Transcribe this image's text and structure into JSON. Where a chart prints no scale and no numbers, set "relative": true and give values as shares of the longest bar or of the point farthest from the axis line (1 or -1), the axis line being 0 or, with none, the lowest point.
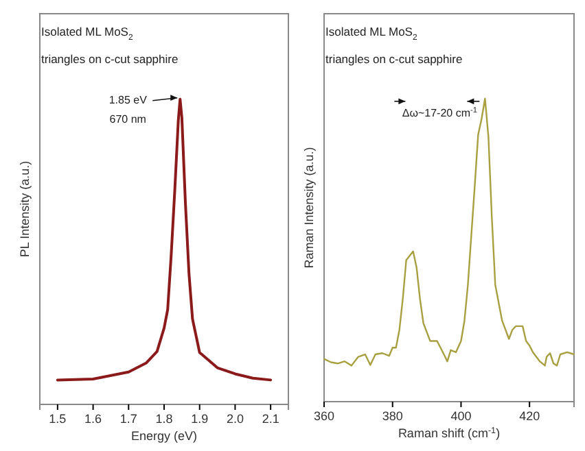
{
  "chart_data": [
    {
      "type": "line",
      "title": "Isolated ML MoS$_{2}$",
      "subtitle": "triangles on c-cut sapphire",
      "xlabel": "Energy (eV)",
      "ylabel": "PL Intensity (a.u.)",
      "relative": true,
      "tick_labels": "x",
      "xlim": [
        1.45,
        2.15
      ],
      "xticks": [
        {
          "value": 1.5,
          "label": "1.5"
        },
        {
          "value": 1.6,
          "label": "1.6"
        },
        {
          "value": 1.7,
          "label": "1.7"
        },
        {
          "value": 1.8,
          "label": "1.8"
        },
        {
          "value": 1.9,
          "label": "1.9"
        },
        {
          "value": 2.0,
          "label": "2.0"
        },
        {
          "value": 2.1,
          "label": "2.1"
        }
      ],
      "x": [
        1.5,
        1.6,
        1.7,
        1.75,
        1.78,
        1.8,
        1.81,
        1.82,
        1.83,
        1.84,
        1.845,
        1.85,
        1.86,
        1.87,
        1.88,
        1.9,
        1.95,
        2.0,
        2.05,
        2.1
      ],
      "series": [
        {
          "color": "#8b1a1a",
          "values": [
            0.08,
            0.083,
            0.106,
            0.136,
            0.173,
            0.25,
            0.31,
            0.49,
            0.7,
            0.93,
            1.0,
            0.94,
            0.66,
            0.43,
            0.28,
            0.17,
            0.12,
            0.1,
            0.086,
            0.08
          ]
        }
      ],
      "annotations": [
        {
          "text": "1.85 eV",
          "x": 1.845,
          "y": 1.0
        },
        "670 nm"
      ]
    },
    {
      "type": "line",
      "title": "Isolated ML MoS$_{2}$",
      "subtitle": "triangles on c-cut sapphire",
      "xlabel": "Raman shift (cm$^{-1}$)",
      "ylabel": "Raman Intensity (a.u.)",
      "relative": true,
      "tick_labels": "x",
      "xlim": [
        360,
        433
      ],
      "xticks": [
        360,
        380,
        400,
        420
      ],
      "x": [
        360,
        362,
        364,
        366,
        368,
        370,
        372,
        373.5,
        375,
        377,
        379,
        380,
        381,
        382,
        383,
        384,
        386,
        387,
        388,
        389,
        391,
        393,
        395,
        396,
        397,
        398.5,
        400,
        401,
        402,
        403,
        404,
        405,
        406,
        407,
        408,
        409,
        410,
        412,
        414,
        415,
        416,
        418,
        419,
        420,
        421,
        423,
        424.5,
        425,
        426,
        427,
        428,
        429,
        431,
        433
      ],
      "series": [
        {
          "color": "#a8a040",
          "values": [
            0.141,
            0.13,
            0.126,
            0.133,
            0.119,
            0.148,
            0.156,
            0.121,
            0.156,
            0.16,
            0.151,
            0.178,
            0.178,
            0.237,
            0.34,
            0.467,
            0.496,
            0.444,
            0.34,
            0.259,
            0.2,
            0.2,
            0.156,
            0.133,
            0.17,
            0.163,
            0.2,
            0.267,
            0.385,
            0.548,
            0.711,
            0.881,
            0.933,
            1.0,
            0.874,
            0.607,
            0.385,
            0.267,
            0.207,
            0.237,
            0.249,
            0.249,
            0.2,
            0.185,
            0.163,
            0.133,
            0.119,
            0.148,
            0.16,
            0.126,
            0.119,
            0.156,
            0.163,
            0.156
          ]
        }
      ],
      "annotations": [
        {
          "text": "Δω~17-20 cm$^{-1}$",
          "x": 407,
          "y": 1.0
        }
      ]
    }
  ]
}
